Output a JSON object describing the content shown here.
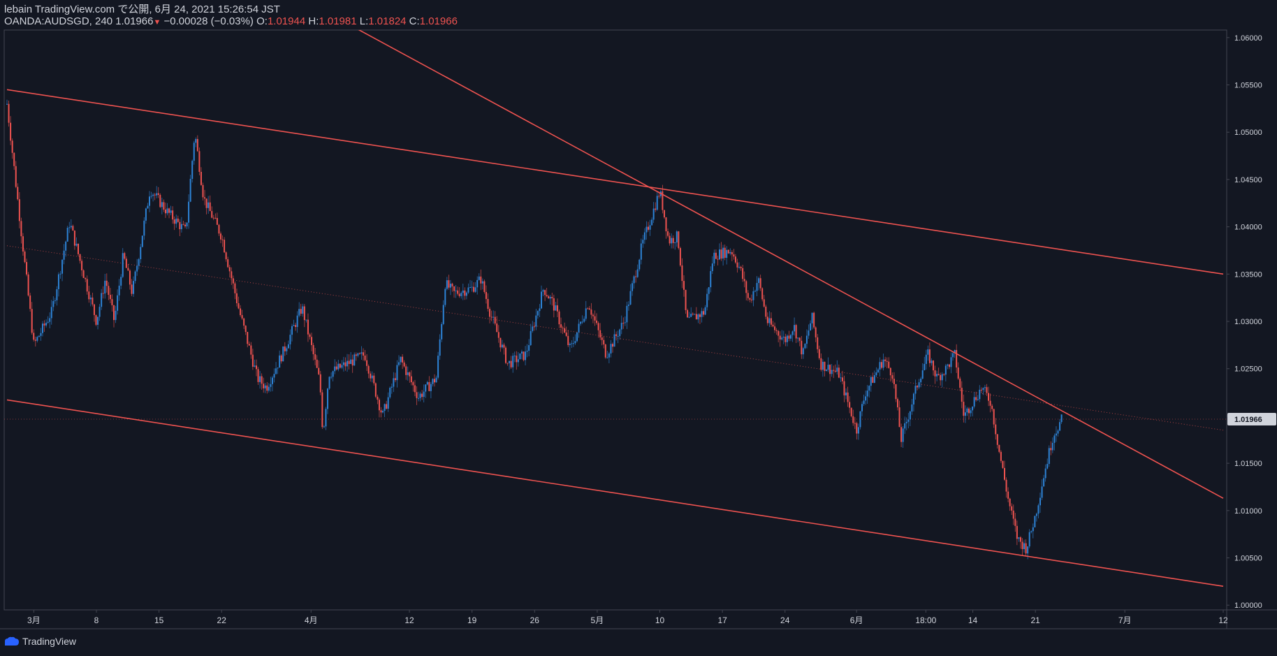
{
  "header": {
    "publisher_line": "lebain TradingView.com で公開, 6月 24, 2021 15:26:54 JST",
    "symbol_line_prefix": "OANDA:AUDSGD, 240 1.01966",
    "change_arrow": "▼",
    "change_text": "−0.00028 (−0.03%)",
    "o_label": " O:",
    "o_value": "1.01944",
    "h_label": " H:",
    "h_value": "1.01981",
    "l_label": " L:",
    "l_value": "1.01824",
    "c_label": " C:",
    "c_value": "1.01966"
  },
  "footer": {
    "brand": "TradingView",
    "logo_icon": "tradingview-logo-icon"
  },
  "colors": {
    "background": "#131722",
    "bull": "#2d83d6",
    "bear": "#ef5350",
    "trendline": "#ef5350",
    "grid_border": "#434651",
    "text": "#d1d4dc",
    "last_price_badge": "#d1d4dc"
  },
  "chart_data": {
    "type": "candlestick",
    "symbol": "OANDA:AUDSGD",
    "interval": "240",
    "ylim": [
      0.9995,
      1.0608
    ],
    "y_ticks": [
      "1.00000",
      "1.00500",
      "1.01000",
      "1.01500",
      "1.02000",
      "1.02500",
      "1.03000",
      "1.03500",
      "1.04000",
      "1.04500",
      "1.05000",
      "1.05500",
      "1.06000"
    ],
    "x_ticks": [
      {
        "label": "3月",
        "x": "2021-03-01"
      },
      {
        "label": "8",
        "x": "2021-03-08"
      },
      {
        "label": "15",
        "x": "2021-03-15"
      },
      {
        "label": "22",
        "x": "2021-03-22"
      },
      {
        "label": "4月",
        "x": "2021-04-01"
      },
      {
        "label": "12",
        "x": "2021-04-12"
      },
      {
        "label": "19",
        "x": "2021-04-19"
      },
      {
        "label": "26",
        "x": "2021-04-26"
      },
      {
        "label": "5月",
        "x": "2021-05-03"
      },
      {
        "label": "10",
        "x": "2021-05-10"
      },
      {
        "label": "17",
        "x": "2021-05-17"
      },
      {
        "label": "24",
        "x": "2021-05-24"
      },
      {
        "label": "6月",
        "x": "2021-06-01"
      },
      {
        "label": "18:00",
        "x": "2021-06-08T18:00"
      },
      {
        "label": "14",
        "x": "2021-06-14"
      },
      {
        "label": "21",
        "x": "2021-06-21"
      },
      {
        "label": "7月",
        "x": "2021-07-01"
      },
      {
        "label": "12",
        "x": "2021-07-12"
      }
    ],
    "last_price": "1.01966",
    "price_path": [
      {
        "x": "2021-02-26",
        "y": 1.053
      },
      {
        "x": "2021-03-01",
        "y": 1.0275
      },
      {
        "x": "2021-03-03",
        "y": 1.031
      },
      {
        "x": "2021-03-05",
        "y": 1.0405
      },
      {
        "x": "2021-03-08",
        "y": 1.03
      },
      {
        "x": "2021-03-09",
        "y": 1.0345
      },
      {
        "x": "2021-03-10",
        "y": 1.03
      },
      {
        "x": "2021-03-11",
        "y": 1.037
      },
      {
        "x": "2021-03-12",
        "y": 1.033
      },
      {
        "x": "2021-03-14",
        "y": 1.044
      },
      {
        "x": "2021-03-16",
        "y": 1.0415
      },
      {
        "x": "2021-03-18",
        "y": 1.0395
      },
      {
        "x": "2021-03-19",
        "y": 1.05
      },
      {
        "x": "2021-03-20",
        "y": 1.043
      },
      {
        "x": "2021-03-22",
        "y": 1.039
      },
      {
        "x": "2021-03-24",
        "y": 1.031
      },
      {
        "x": "2021-03-26",
        "y": 1.024
      },
      {
        "x": "2021-03-27",
        "y": 1.023
      },
      {
        "x": "2021-03-29",
        "y": 1.027
      },
      {
        "x": "2021-03-31",
        "y": 1.0315
      },
      {
        "x": "2021-04-02",
        "y": 1.0235
      },
      {
        "x": "2021-04-02T08:00",
        "y": 1.018
      },
      {
        "x": "2021-04-03",
        "y": 1.0245
      },
      {
        "x": "2021-04-05",
        "y": 1.0255
      },
      {
        "x": "2021-04-07",
        "y": 1.0265
      },
      {
        "x": "2021-04-09",
        "y": 1.02
      },
      {
        "x": "2021-04-11",
        "y": 1.026
      },
      {
        "x": "2021-04-13",
        "y": 1.022
      },
      {
        "x": "2021-04-15",
        "y": 1.024
      },
      {
        "x": "2021-04-16",
        "y": 1.034
      },
      {
        "x": "2021-04-17",
        "y": 1.033
      },
      {
        "x": "2021-04-19",
        "y": 1.0335
      },
      {
        "x": "2021-04-20",
        "y": 1.0345
      },
      {
        "x": "2021-04-21",
        "y": 1.031
      },
      {
        "x": "2021-04-23",
        "y": 1.0255
      },
      {
        "x": "2021-04-25",
        "y": 1.0265
      },
      {
        "x": "2021-04-27",
        "y": 1.0335
      },
      {
        "x": "2021-04-28",
        "y": 1.032
      },
      {
        "x": "2021-04-30",
        "y": 1.027
      },
      {
        "x": "2021-05-02",
        "y": 1.032
      },
      {
        "x": "2021-05-04",
        "y": 1.0265
      },
      {
        "x": "2021-05-06",
        "y": 1.03
      },
      {
        "x": "2021-05-08",
        "y": 1.038
      },
      {
        "x": "2021-05-10",
        "y": 1.0438
      },
      {
        "x": "2021-05-11",
        "y": 1.0385
      },
      {
        "x": "2021-05-12",
        "y": 1.039
      },
      {
        "x": "2021-05-13",
        "y": 1.03
      },
      {
        "x": "2021-05-15",
        "y": 1.031
      },
      {
        "x": "2021-05-16",
        "y": 1.037
      },
      {
        "x": "2021-05-18",
        "y": 1.0375
      },
      {
        "x": "2021-05-19",
        "y": 1.0355
      },
      {
        "x": "2021-05-20",
        "y": 1.032
      },
      {
        "x": "2021-05-21",
        "y": 1.0345
      },
      {
        "x": "2021-05-22",
        "y": 1.03
      },
      {
        "x": "2021-05-24",
        "y": 1.028
      },
      {
        "x": "2021-05-25",
        "y": 1.0295
      },
      {
        "x": "2021-05-26",
        "y": 1.0265
      },
      {
        "x": "2021-05-27",
        "y": 1.0305
      },
      {
        "x": "2021-05-28",
        "y": 1.0255
      },
      {
        "x": "2021-05-30",
        "y": 1.0245
      },
      {
        "x": "2021-06-01",
        "y": 1.0185
      },
      {
        "x": "2021-06-02",
        "y": 1.0225
      },
      {
        "x": "2021-06-04",
        "y": 1.026
      },
      {
        "x": "2021-06-05",
        "y": 1.0245
      },
      {
        "x": "2021-06-06",
        "y": 1.0175
      },
      {
        "x": "2021-06-08",
        "y": 1.024
      },
      {
        "x": "2021-06-09",
        "y": 1.0265
      },
      {
        "x": "2021-06-10",
        "y": 1.024
      },
      {
        "x": "2021-06-11",
        "y": 1.025
      },
      {
        "x": "2021-06-12",
        "y": 1.0265
      },
      {
        "x": "2021-06-13",
        "y": 1.02
      },
      {
        "x": "2021-06-15",
        "y": 1.023
      },
      {
        "x": "2021-06-16",
        "y": 1.0215
      },
      {
        "x": "2021-06-17",
        "y": 1.016
      },
      {
        "x": "2021-06-18",
        "y": 1.011
      },
      {
        "x": "2021-06-19",
        "y": 1.007
      },
      {
        "x": "2021-06-20",
        "y": 1.006
      },
      {
        "x": "2021-06-21",
        "y": 1.0095
      },
      {
        "x": "2021-06-22",
        "y": 1.014
      },
      {
        "x": "2021-06-23",
        "y": 1.018
      },
      {
        "x": "2021-06-24",
        "y": 1.0197
      }
    ],
    "trendlines": [
      {
        "name": "upper-channel-line",
        "p1": {
          "x": "2021-02-26",
          "y": 1.0545
        },
        "p2": {
          "x": "2021-07-12",
          "y": 1.035
        }
      },
      {
        "name": "lower-channel-line",
        "p1": {
          "x": "2021-02-26",
          "y": 1.0217
        },
        "p2": {
          "x": "2021-07-12",
          "y": 1.002
        }
      },
      {
        "name": "steep-resistance-line",
        "p1": {
          "x": "2021-04-06",
          "y": 1.061
        },
        "p2": {
          "x": "2021-07-12",
          "y": 1.0113
        }
      }
    ],
    "dotted_midline": {
      "p1": {
        "x": "2021-02-26",
        "y": 1.038
      },
      "p2": {
        "x": "2021-07-12",
        "y": 1.0185
      }
    },
    "last_price_line": 1.01966
  }
}
